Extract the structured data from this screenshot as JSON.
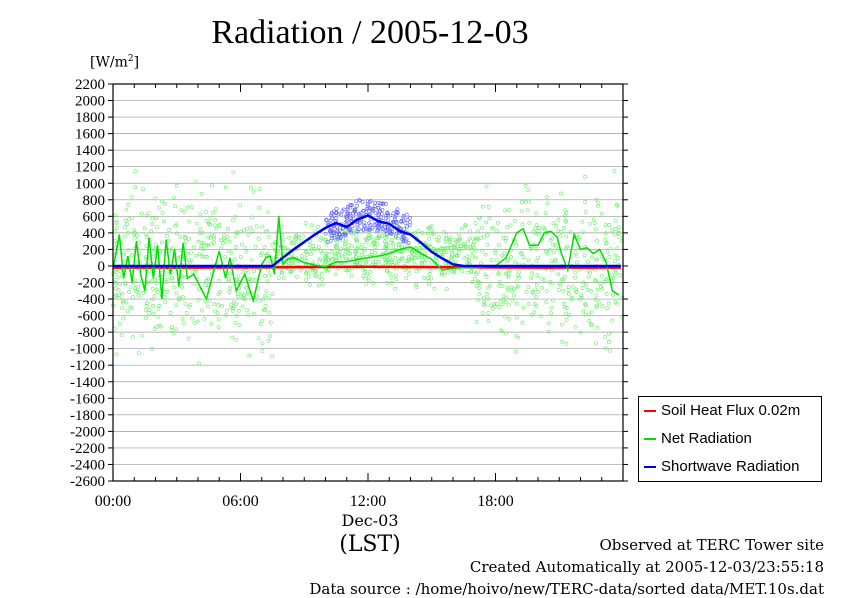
{
  "chart_data": {
    "type": "line",
    "title": "Radiation / 2005-12-03",
    "ylabel_prefix": "[W/m",
    "ylabel_sup": "2",
    "ylabel_suffix": "]",
    "ylim": [
      -2600,
      2200
    ],
    "yticks": [
      2200,
      2000,
      1800,
      1600,
      1400,
      1200,
      1000,
      800,
      600,
      400,
      200,
      0,
      -200,
      -400,
      -600,
      -800,
      -1000,
      -1200,
      -1400,
      -1600,
      -1800,
      -2000,
      -2200,
      -2400,
      -2600
    ],
    "xlim": [
      0,
      24
    ],
    "xticks": [
      0,
      6,
      12,
      18
    ],
    "xtick_labels": [
      "00:00",
      "06:00",
      "12:00",
      "18:00"
    ],
    "x_date_label": "Dec-03",
    "xlabel": "(LST)",
    "grid": true,
    "legend_placement": "right",
    "series": [
      {
        "name": "Soil Heat Flux 0.02m",
        "color": "#ff0000",
        "x": [
          0,
          4,
          8,
          12,
          16,
          20,
          23.9
        ],
        "values": [
          -20,
          -20,
          -15,
          -10,
          -15,
          -20,
          -20
        ]
      },
      {
        "name": "Net Radiation",
        "color": "#00dd00",
        "x": [
          0,
          0.3,
          0.5,
          0.7,
          0.9,
          1.1,
          1.3,
          1.5,
          1.7,
          1.9,
          2.1,
          2.3,
          2.5,
          2.7,
          2.9,
          3.1,
          3.3,
          3.5,
          3.8,
          4.1,
          4.4,
          4.7,
          5.0,
          5.3,
          5.5,
          5.8,
          6.2,
          6.6,
          7.0,
          7.2,
          7.4,
          7.6,
          7.8,
          8.0,
          8.2,
          8.5,
          9.0,
          9.5,
          10.0,
          10.5,
          11.0,
          11.5,
          12.0,
          12.5,
          13.0,
          13.5,
          14.0,
          14.5,
          15.0,
          15.5,
          16.0,
          16.5,
          17.0,
          17.5,
          18.0,
          18.5,
          19.0,
          19.3,
          19.6,
          20.0,
          20.3,
          20.6,
          20.9,
          21.1,
          21.4,
          21.7,
          22.0,
          22.3,
          22.6,
          22.9,
          23.2,
          23.5,
          23.8
        ],
        "values": [
          -40,
          380,
          -150,
          120,
          -200,
          300,
          -100,
          -300,
          340,
          -150,
          250,
          -400,
          320,
          -100,
          200,
          -250,
          280,
          -150,
          -100,
          -250,
          -400,
          -100,
          180,
          -150,
          100,
          -300,
          -100,
          -420,
          20,
          100,
          120,
          -100,
          600,
          20,
          80,
          100,
          40,
          10,
          -10,
          50,
          50,
          80,
          100,
          120,
          150,
          200,
          230,
          150,
          80,
          -50,
          -30,
          -20,
          -20,
          -10,
          0,
          100,
          400,
          450,
          250,
          250,
          400,
          420,
          350,
          150,
          -50,
          380,
          200,
          220,
          150,
          200,
          50,
          -300,
          -350
        ]
      },
      {
        "name": "Shortwave Radiation",
        "color": "#0000ee",
        "x": [
          0,
          7.5,
          8.0,
          8.5,
          9.0,
          9.5,
          10.0,
          10.5,
          11.0,
          11.5,
          12.0,
          12.5,
          13.0,
          13.5,
          14.0,
          14.5,
          15.0,
          15.5,
          16.0,
          16.5,
          17.0,
          20,
          23.9
        ],
        "values": [
          0,
          0,
          100,
          200,
          290,
          380,
          460,
          520,
          470,
          560,
          610,
          540,
          510,
          420,
          380,
          280,
          170,
          90,
          20,
          0,
          0,
          0,
          0
        ]
      }
    ]
  },
  "footer": {
    "observed": "Observed at TERC Tower site",
    "created": "Created Automatically at 2005-12-03/23:55:18",
    "source": "Data source : /home/hoivo/new/TERC-data/sorted  data/MET.10s.dat"
  }
}
